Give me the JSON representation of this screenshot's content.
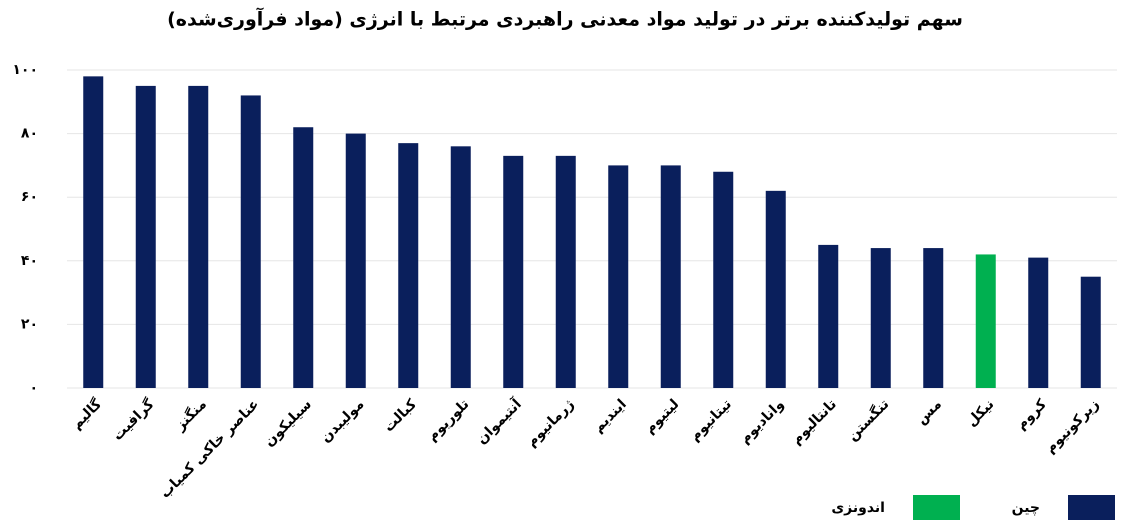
{
  "chart_data": {
    "type": "bar",
    "title": "سهم تولیدکننده برتر در تولید مواد معدنی راهبردی مرتبط با انرژی (مواد فرآوری‌شده)",
    "categories": [
      "گالیم",
      "گرافیت",
      "منگنز",
      "عناصر خاکی کمیاب",
      "سیلیکون",
      "مولیبدن",
      "کبالت",
      "تلوریوم",
      "آنتیموان",
      "ژرمانیوم",
      "ایندیم",
      "لیتیوم",
      "تیتانیوم",
      "وانادیوم",
      "تانتالیوم",
      "تنگستن",
      "مس",
      "نیکل",
      "کروم",
      "زیرکونیوم"
    ],
    "values": [
      98,
      95,
      95,
      92,
      82,
      80,
      77,
      76,
      73,
      73,
      70,
      70,
      68,
      62,
      45,
      44,
      44,
      42,
      41,
      35
    ],
    "colors": [
      "#0a1f5c",
      "#0a1f5c",
      "#0a1f5c",
      "#0a1f5c",
      "#0a1f5c",
      "#0a1f5c",
      "#0a1f5c",
      "#0a1f5c",
      "#0a1f5c",
      "#0a1f5c",
      "#0a1f5c",
      "#0a1f5c",
      "#0a1f5c",
      "#0a1f5c",
      "#0a1f5c",
      "#0a1f5c",
      "#0a1f5c",
      "#00b050",
      "#0a1f5c",
      "#0a1f5c"
    ],
    "legend": [
      {
        "name": "چین",
        "color": "#0a1f5c"
      },
      {
        "name": "اندونزی",
        "color": "#00b050"
      }
    ],
    "ylim": [
      0,
      100
    ],
    "yticks": [
      {
        "value": 0,
        "label": "۰"
      },
      {
        "value": 20,
        "label": "۲۰"
      },
      {
        "value": 40,
        "label": "۴۰"
      },
      {
        "value": 60,
        "label": "۶۰"
      },
      {
        "value": 80,
        "label": "۸۰"
      },
      {
        "value": 100,
        "label": "۱۰۰"
      }
    ],
    "grid": true
  }
}
